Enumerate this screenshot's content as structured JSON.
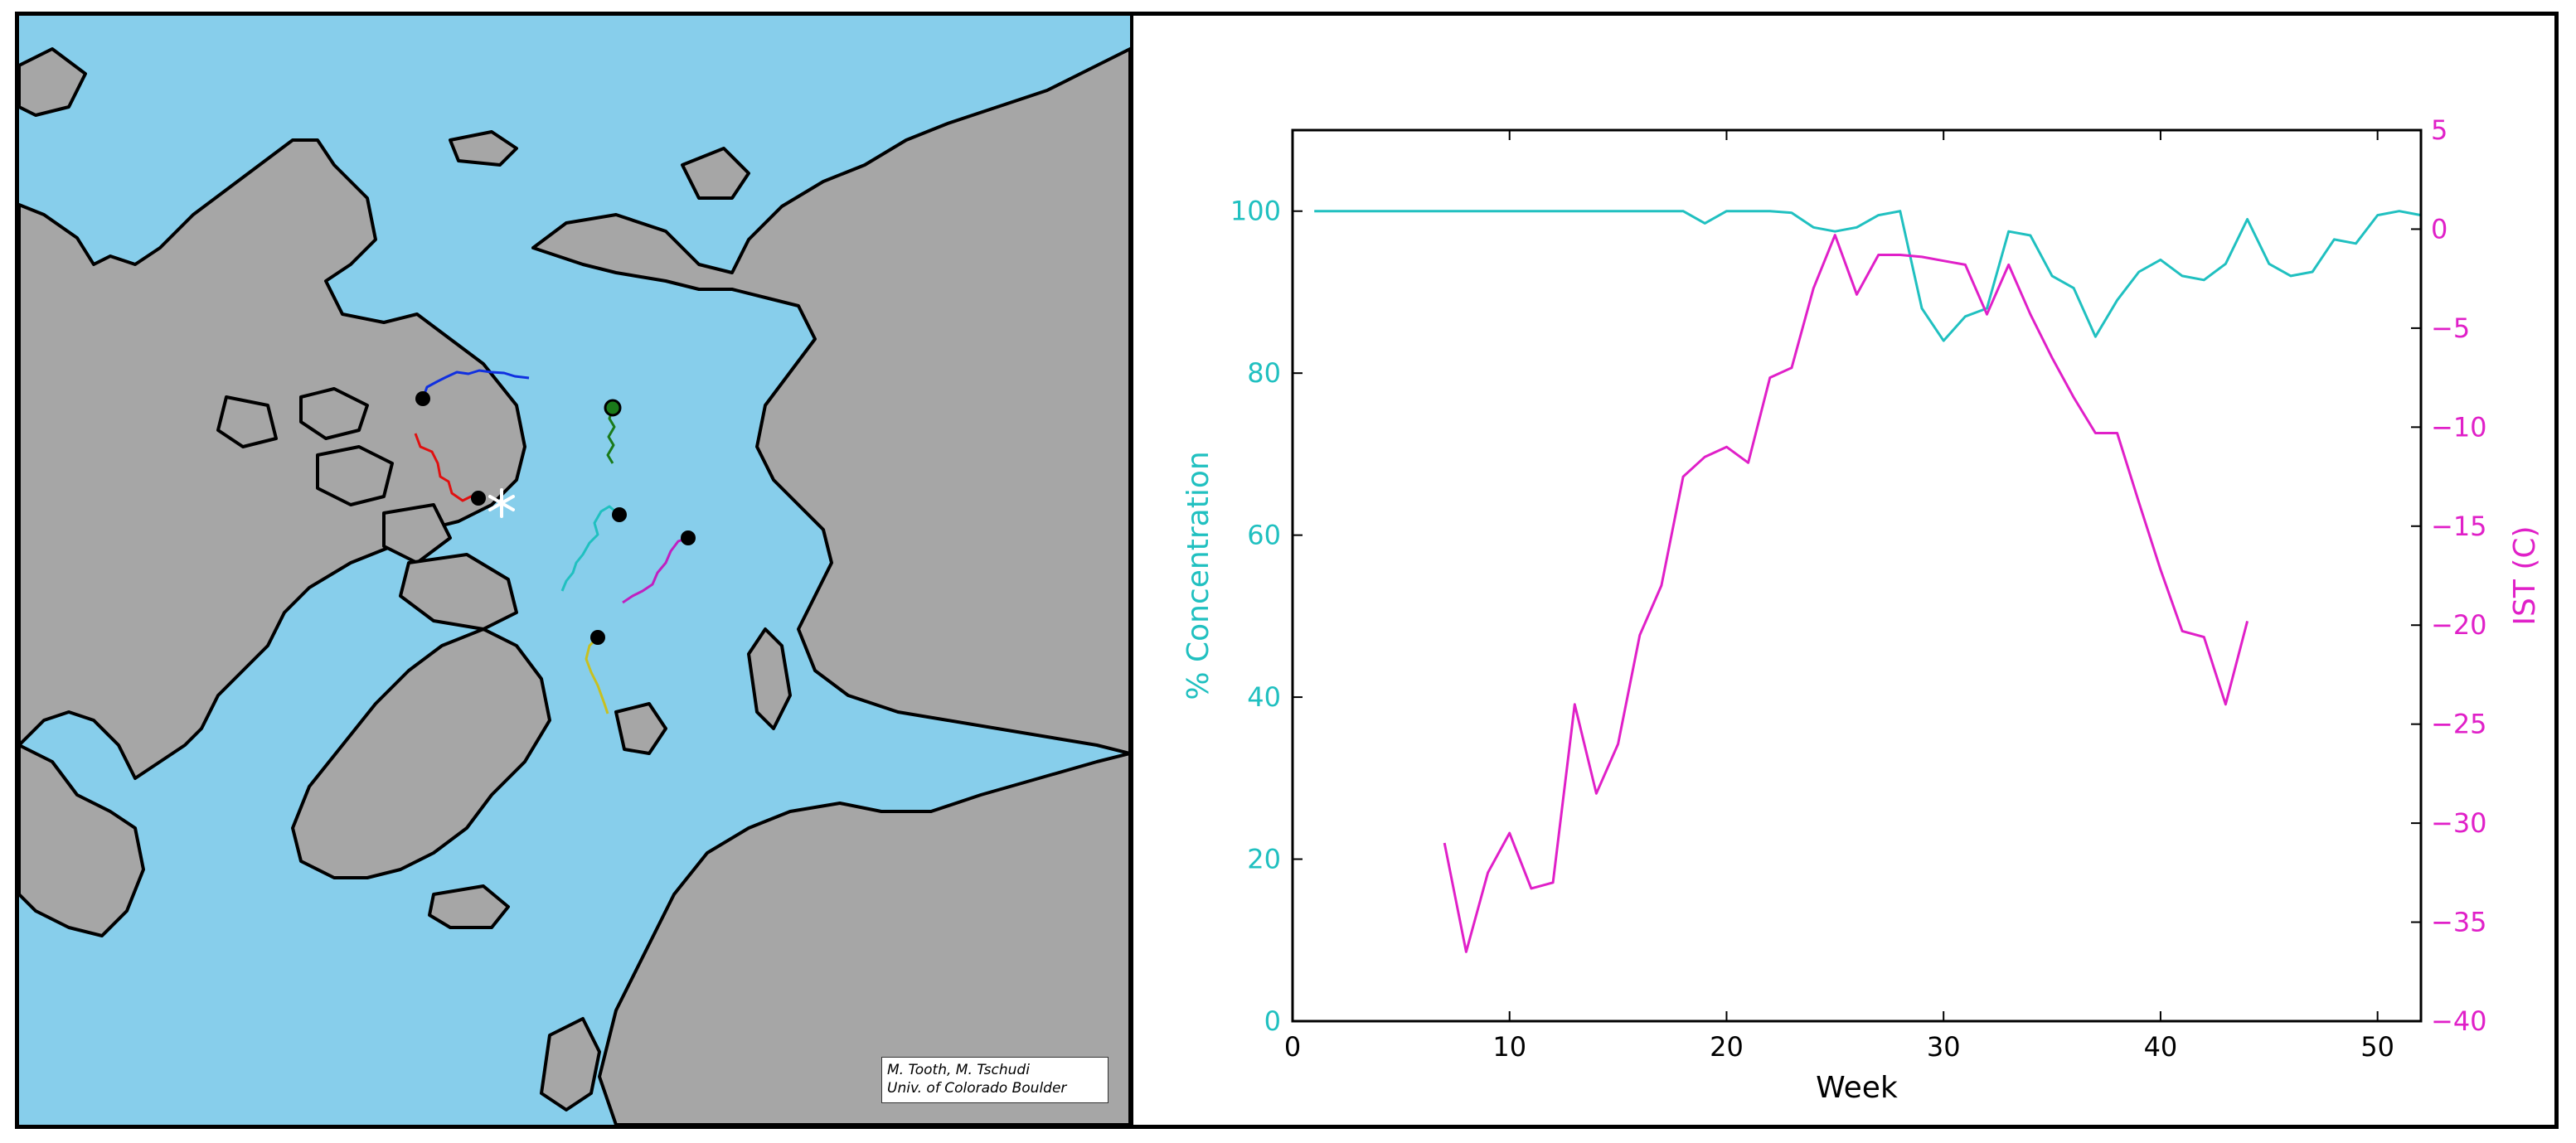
{
  "map": {
    "credit_line1": "M. Tooth, M. Tschudi",
    "credit_line2": "Univ. of Colorado Boulder",
    "ocean_color": "#87ceeb",
    "land_color": "#a6a6a6",
    "tracks": [
      {
        "color": "#1030e0",
        "end_marker": "black-dot"
      },
      {
        "color": "#e01010",
        "end_marker": "black-dot"
      },
      {
        "color": "#1a7a1a",
        "end_marker": "green-black-dot"
      },
      {
        "color": "#20c0c0",
        "end_marker": "black-dot"
      },
      {
        "color": "#c020c0",
        "end_marker": "black-dot"
      },
      {
        "color": "#c8c020",
        "end_marker": "black-dot"
      }
    ],
    "highlight_marker": "white-asterisk-icon"
  },
  "chart_data": {
    "type": "line",
    "xlabel": "Week",
    "ylabel_left": "% Concentration",
    "ylabel_right": "IST (C)",
    "xlim": [
      0,
      52
    ],
    "ylim_left": [
      0,
      110
    ],
    "ylim_right": [
      -40,
      5
    ],
    "x_ticks": [
      "0",
      "10",
      "20",
      "30",
      "40",
      "50"
    ],
    "y_left_ticks": [
      "0",
      "20",
      "40",
      "60",
      "80",
      "100"
    ],
    "y_right_ticks": [
      "−40",
      "−35",
      "−30",
      "−25",
      "−20",
      "−15",
      "−10",
      "−5",
      "0",
      "5"
    ],
    "left_color": "#20c0c0",
    "right_color": "#e020c8",
    "series": [
      {
        "axis": "left",
        "x": [
          1,
          2,
          3,
          4,
          5,
          6,
          7,
          8,
          9,
          10,
          11,
          12,
          13,
          14,
          15,
          16,
          17,
          18,
          19,
          20,
          21,
          22,
          23,
          24,
          25,
          26,
          27,
          28,
          29,
          30,
          31,
          32,
          33,
          34,
          35,
          36,
          37,
          38,
          39,
          40,
          41,
          42,
          43,
          44,
          45,
          46,
          47,
          48,
          49,
          50,
          51,
          52
        ],
        "values": [
          100,
          100,
          100,
          100,
          100,
          100,
          100,
          100,
          100,
          100,
          100,
          100,
          100,
          100,
          100,
          100,
          100,
          100,
          98.5,
          100,
          100,
          100,
          99.8,
          98,
          97.5,
          98,
          99.5,
          100,
          88,
          84,
          87,
          88,
          97.5,
          97,
          92,
          90.5,
          84.5,
          89,
          92.5,
          94,
          92,
          91.5,
          93.5,
          99,
          93.5,
          92,
          92.5,
          96.5,
          96,
          99.5,
          100,
          99.5
        ]
      },
      {
        "axis": "right",
        "x": [
          7,
          8,
          9,
          10,
          11,
          12,
          13,
          14,
          15,
          16,
          17,
          18,
          19,
          20,
          21,
          22,
          23,
          24,
          25,
          26,
          27,
          28,
          29,
          30,
          31,
          32,
          33,
          34,
          35,
          36,
          37,
          38,
          39,
          40,
          41,
          42,
          43,
          44
        ],
        "values": [
          -31,
          -36.5,
          -32.5,
          -30.5,
          -33.3,
          -33,
          -24,
          -28.5,
          -26,
          -20.5,
          -18,
          -12.5,
          -11.5,
          -11,
          -11.8,
          -7.5,
          -7,
          -3,
          -0.3,
          -3.3,
          -1.3,
          -1.3,
          -1.4,
          -1.6,
          -1.8,
          -4.3,
          -1.8,
          -4.3,
          -6.5,
          -8.5,
          -10.3,
          -10.3,
          -13.8,
          -17.2,
          -20.3,
          -20.6,
          -24,
          -19.8
        ]
      }
    ]
  }
}
